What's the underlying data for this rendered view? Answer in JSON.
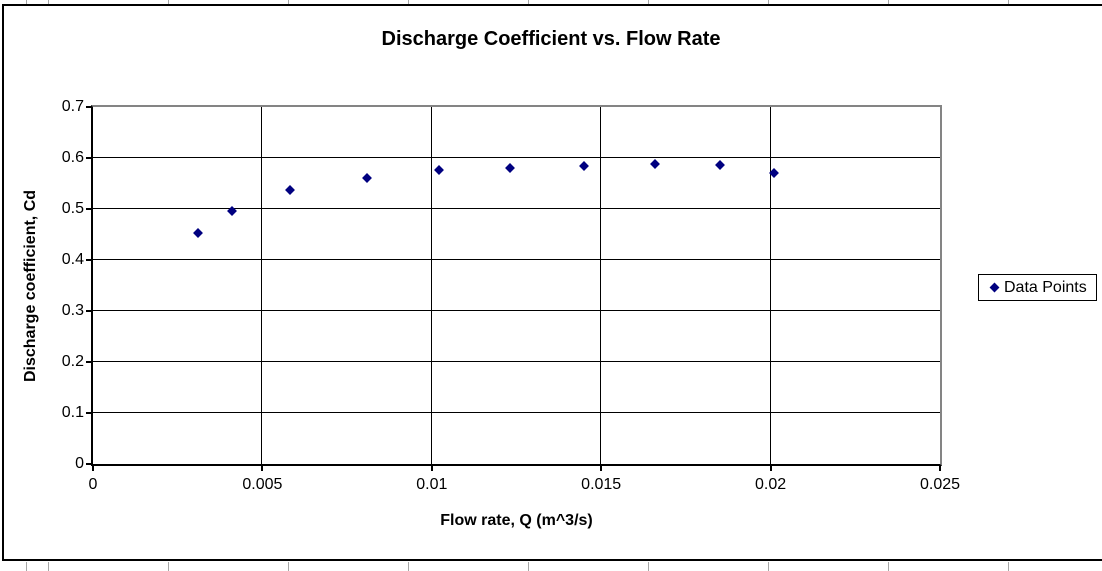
{
  "chart_data": {
    "type": "scatter",
    "title": "Discharge Coefficient vs. Flow Rate",
    "xlabel": "Flow rate, Q (m^3/s)",
    "ylabel": "Discharge coefficient, Cd",
    "xlim": [
      0,
      0.025
    ],
    "ylim": [
      0,
      0.7
    ],
    "x_ticks": [
      0,
      0.005,
      0.01,
      0.015,
      0.02,
      0.025
    ],
    "x_tick_labels": [
      "0",
      "0.005",
      "0.01",
      "0.015",
      "0.02",
      "0.025"
    ],
    "y_ticks": [
      0,
      0.1,
      0.2,
      0.3,
      0.4,
      0.5,
      0.6,
      0.7
    ],
    "y_tick_labels": [
      "0",
      "0.1",
      "0.2",
      "0.3",
      "0.4",
      "0.5",
      "0.6",
      "0.7"
    ],
    "grid": true,
    "legend_position": "right",
    "series": [
      {
        "name": "Data Points",
        "marker": "diamond",
        "color": "#000080",
        "points": [
          [
            0.0031,
            0.452
          ],
          [
            0.0041,
            0.496
          ],
          [
            0.0058,
            0.537
          ],
          [
            0.0081,
            0.56
          ],
          [
            0.0102,
            0.576
          ],
          [
            0.0123,
            0.581
          ],
          [
            0.0145,
            0.585
          ],
          [
            0.0166,
            0.588
          ],
          [
            0.0185,
            0.586
          ],
          [
            0.0201,
            0.57
          ]
        ]
      }
    ]
  },
  "colors": {
    "marker": "#000080",
    "gridline": "#000000",
    "axis_line": "#000000",
    "plot_border": "#848484",
    "frame_border": "#000000",
    "cell_line": "#a6a6a6",
    "background": "#ffffff",
    "text": "#000000"
  }
}
